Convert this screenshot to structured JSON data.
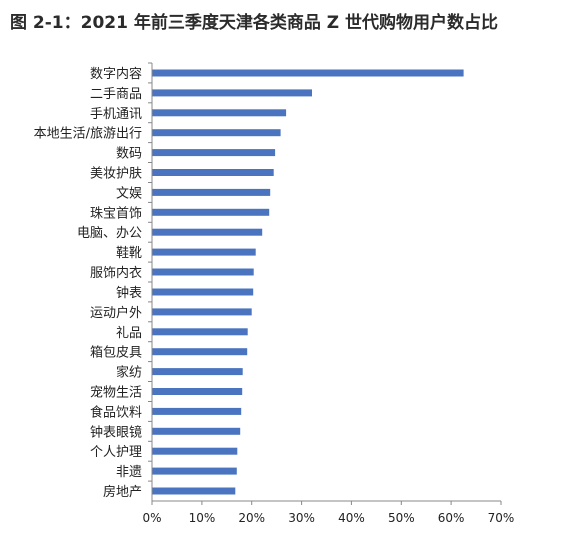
{
  "title": "图 2-1：2021 年前三季度天津各类商品 Z 世代购物用户数占比",
  "chart_data": {
    "type": "bar",
    "orientation": "horizontal",
    "title": "图 2-1：2021 年前三季度天津各类商品 Z 世代购物用户数占比",
    "xlabel": "",
    "ylabel": "",
    "xlim": [
      0,
      70
    ],
    "x_unit": "%",
    "x_ticks": [
      "0%",
      "10%",
      "20%",
      "30%",
      "40%",
      "50%",
      "60%",
      "70%"
    ],
    "grid": false,
    "legend": "none",
    "bar_color": "#4a74bf",
    "categories": [
      "数字内容",
      "二手商品",
      "手机通讯",
      "本地生活/旅游出行",
      "数码",
      "美妆护肤",
      "文娱",
      "珠宝首饰",
      "电脑、办公",
      "鞋靴",
      "服饰内衣",
      "钟表",
      "运动户外",
      "礼品",
      "箱包皮具",
      "家纺",
      "宠物生活",
      "食品饮料",
      "钟表眼镜",
      "个人护理",
      "非遗",
      "房地产"
    ],
    "values": [
      62.5,
      32.1,
      26.9,
      25.8,
      24.7,
      24.4,
      23.7,
      23.5,
      22.1,
      20.8,
      20.4,
      20.3,
      20.0,
      19.2,
      19.1,
      18.2,
      18.1,
      17.9,
      17.7,
      17.1,
      17.0,
      16.7
    ]
  }
}
